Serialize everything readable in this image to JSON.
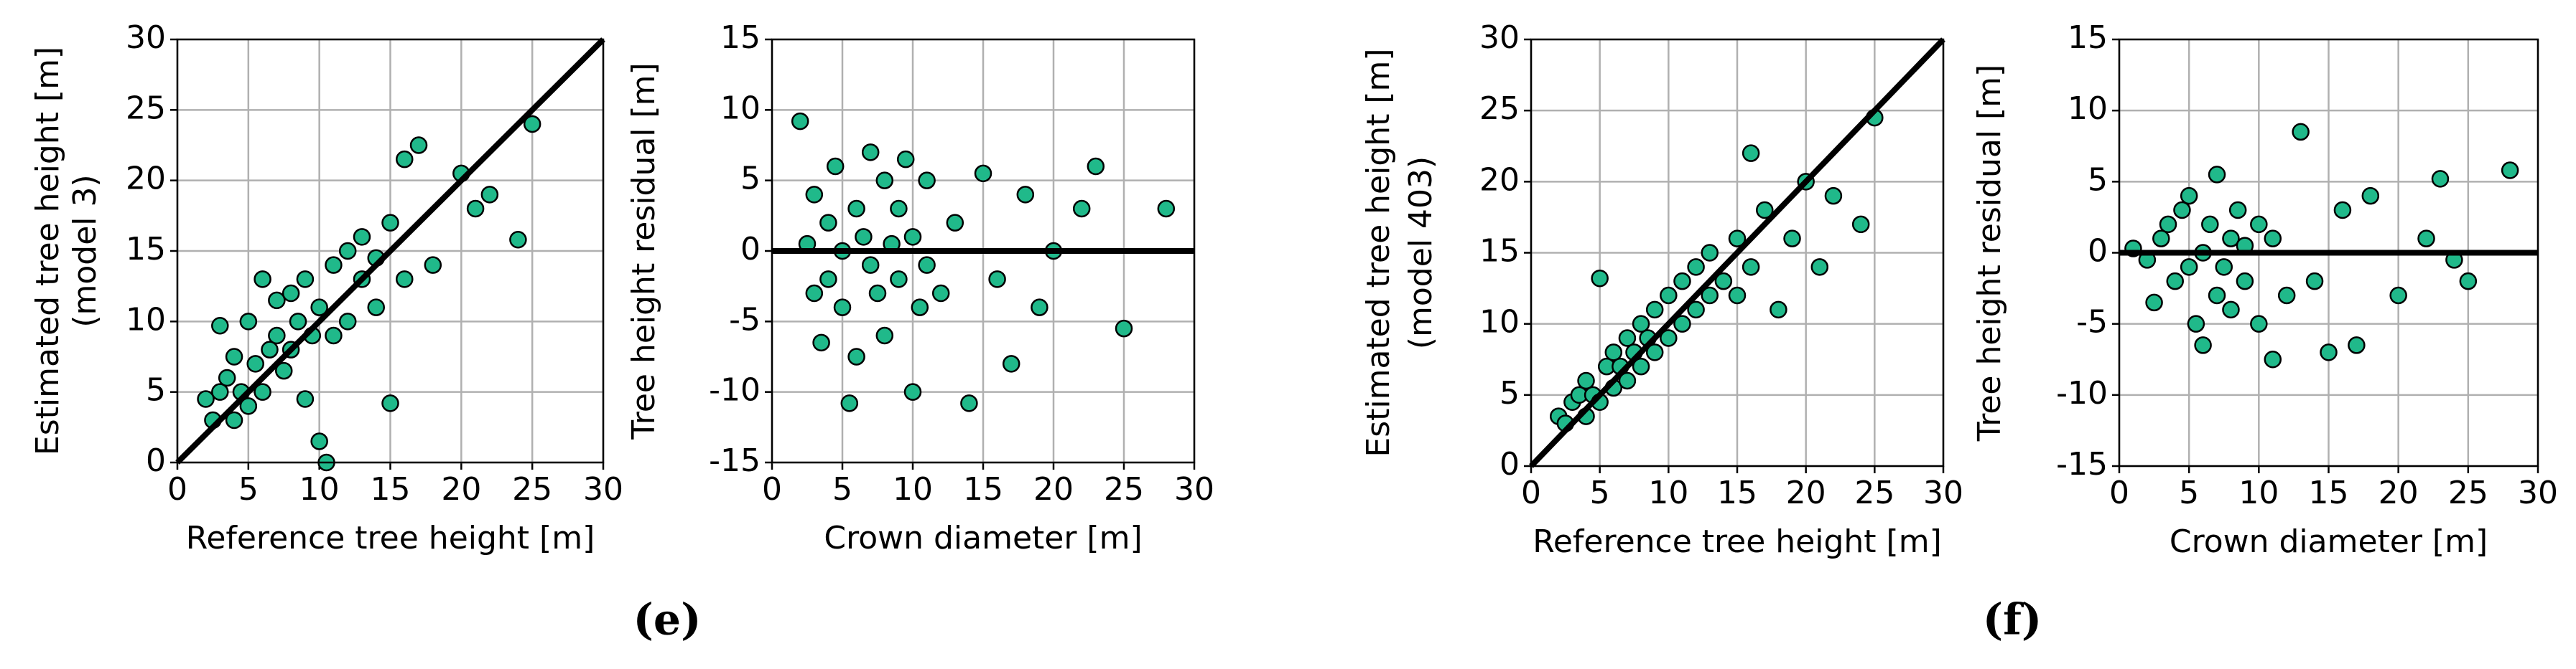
{
  "panel_labels": [
    "(e)",
    "(f)"
  ],
  "chart_data": [
    {
      "type": "scatter",
      "xlabel": "Reference tree height [m]",
      "ylabel": [
        "Estimated tree height [m]",
        "(model 3)"
      ],
      "xlim": [
        0,
        30
      ],
      "ylim": [
        0,
        30
      ],
      "xticks": [
        0,
        5,
        10,
        15,
        20,
        25,
        30
      ],
      "yticks": [
        0,
        5,
        10,
        15,
        20,
        25,
        30
      ],
      "grid": true,
      "color": "#20b98a",
      "edgecolor": "#000000",
      "reference_line": {
        "x": [
          0,
          30
        ],
        "y": [
          0,
          30
        ],
        "color": "#000000"
      },
      "x": [
        2,
        2.5,
        3,
        3,
        3.5,
        4,
        4,
        4.5,
        5,
        5,
        5.5,
        6,
        6,
        6.5,
        7,
        7,
        7.5,
        8,
        8,
        8.5,
        9,
        9,
        9.5,
        10,
        10,
        10.5,
        11,
        11,
        12,
        12,
        13,
        13,
        14,
        14,
        15,
        15,
        16,
        16,
        17,
        18,
        20,
        21,
        22,
        24,
        25
      ],
      "values": [
        4.5,
        3,
        9.7,
        5,
        6,
        7.5,
        3,
        5,
        10,
        4,
        7,
        13,
        5,
        8,
        9,
        11.5,
        6.5,
        12,
        8,
        10,
        4.5,
        13,
        9,
        11,
        1.5,
        0,
        14,
        9,
        15,
        10,
        13,
        16,
        11,
        14.5,
        4.2,
        17,
        21.5,
        13,
        22.5,
        14,
        20.5,
        18,
        19,
        15.8,
        24
      ]
    },
    {
      "type": "scatter",
      "xlabel": "Crown diameter [m]",
      "ylabel": [
        "Tree height residual [m]"
      ],
      "xlim": [
        0,
        30
      ],
      "ylim": [
        -15,
        15
      ],
      "xticks": [
        0,
        5,
        10,
        15,
        20,
        25,
        30
      ],
      "yticks": [
        -15,
        -10,
        -5,
        0,
        5,
        10,
        15
      ],
      "grid": true,
      "color": "#20b98a",
      "edgecolor": "#000000",
      "reference_line": {
        "x": [
          0,
          30
        ],
        "y": [
          0,
          0
        ],
        "color": "#000000"
      },
      "x": [
        2,
        2.5,
        3,
        3,
        3.5,
        4,
        4,
        4.5,
        5,
        5,
        5.5,
        6,
        6,
        6.5,
        7,
        7,
        7.5,
        8,
        8,
        8.5,
        9,
        9,
        9.5,
        10,
        10,
        10.5,
        11,
        11,
        12,
        13,
        14,
        15,
        16,
        17,
        18,
        19,
        20,
        22,
        23,
        25,
        28
      ],
      "values": [
        9.2,
        0.5,
        -3,
        4,
        -6.5,
        2,
        -2,
        6,
        0,
        -4,
        -10.8,
        3,
        -7.5,
        1,
        -1,
        7,
        -3,
        5,
        -6,
        0.5,
        -2,
        3,
        6.5,
        -10,
        1,
        -4,
        5,
        -1,
        -3,
        2,
        -10.8,
        5.5,
        -2,
        -8,
        4,
        -4,
        0,
        3,
        6,
        -5.5,
        3
      ]
    },
    {
      "type": "scatter",
      "xlabel": "Reference tree height [m]",
      "ylabel": [
        "Estimated tree height [m]",
        "(model 403)"
      ],
      "xlim": [
        0,
        30
      ],
      "ylim": [
        0,
        30
      ],
      "xticks": [
        0,
        5,
        10,
        15,
        20,
        25,
        30
      ],
      "yticks": [
        0,
        5,
        10,
        15,
        20,
        25,
        30
      ],
      "grid": true,
      "color": "#20b98a",
      "edgecolor": "#000000",
      "reference_line": {
        "x": [
          0,
          30
        ],
        "y": [
          0,
          30
        ],
        "color": "#000000"
      },
      "x": [
        2,
        2.5,
        3,
        3.5,
        4,
        4,
        4.5,
        5,
        5,
        5.5,
        6,
        6,
        6.5,
        7,
        7,
        7.5,
        8,
        8,
        8.5,
        9,
        9,
        10,
        10,
        11,
        11,
        12,
        12,
        13,
        13,
        14,
        15,
        15,
        16,
        16,
        17,
        18,
        19,
        20,
        21,
        22,
        24,
        25
      ],
      "values": [
        3.5,
        3,
        4.5,
        5,
        3.5,
        6,
        5,
        13.2,
        4.5,
        7,
        5.5,
        8,
        7,
        6,
        9,
        8,
        7,
        10,
        9,
        8,
        11,
        9,
        12,
        10,
        13,
        11,
        14,
        12,
        15,
        13,
        12,
        16,
        14,
        22,
        18,
        11,
        16,
        20,
        14,
        19,
        17,
        24.5
      ]
    },
    {
      "type": "scatter",
      "xlabel": "Crown diameter [m]",
      "ylabel": [
        "Tree height residual [m]"
      ],
      "xlim": [
        0,
        30
      ],
      "ylim": [
        -15,
        15
      ],
      "xticks": [
        0,
        5,
        10,
        15,
        20,
        25,
        30
      ],
      "yticks": [
        -15,
        -10,
        -5,
        0,
        5,
        10,
        15
      ],
      "grid": true,
      "color": "#20b98a",
      "edgecolor": "#000000",
      "reference_line": {
        "x": [
          0,
          30
        ],
        "y": [
          0,
          0
        ],
        "color": "#000000"
      },
      "x": [
        1,
        2,
        2.5,
        3,
        3.5,
        4,
        4.5,
        5,
        5,
        5.5,
        6,
        6,
        6.5,
        7,
        7,
        7.5,
        8,
        8,
        8.5,
        9,
        9,
        10,
        10,
        11,
        11,
        12,
        13,
        14,
        15,
        16,
        17,
        18,
        20,
        22,
        23,
        24,
        25,
        28
      ],
      "values": [
        0.3,
        -0.5,
        -3.5,
        1,
        2,
        -2,
        3,
        -1,
        4,
        -5,
        0,
        -6.5,
        2,
        -3,
        5.5,
        -1,
        1,
        -4,
        3,
        -2,
        0.5,
        -5,
        2,
        -7.5,
        1,
        -3,
        8.5,
        -2,
        -7,
        3,
        -6.5,
        4,
        -3,
        1,
        5.2,
        -0.5,
        -2,
        5.8
      ]
    }
  ]
}
